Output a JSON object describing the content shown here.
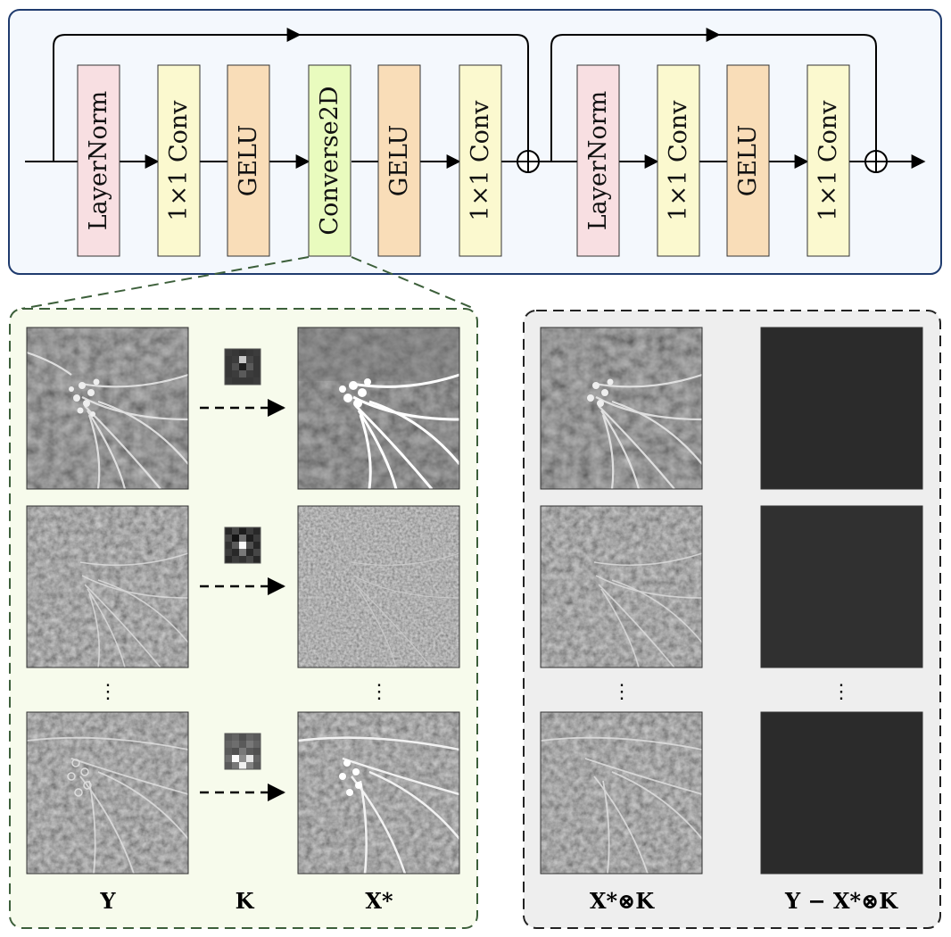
{
  "pipeline": {
    "blocks": [
      {
        "label": "LayerNorm",
        "color": "#f8dfe2"
      },
      {
        "label": "1×1 Conv",
        "color": "#fbf9cf"
      },
      {
        "label": "GELU",
        "color": "#f9ddb8"
      },
      {
        "label": "Converse2D",
        "color": "#e9fbbe"
      },
      {
        "label": "GELU",
        "color": "#f9ddb8"
      },
      {
        "label": "1×1 Conv",
        "color": "#fbf9cf"
      },
      {
        "label": "LayerNorm",
        "color": "#f8dfe2"
      },
      {
        "label": "1×1 Conv",
        "color": "#fbf9cf"
      },
      {
        "label": "GELU",
        "color": "#f9ddb8"
      },
      {
        "label": "1×1 Conv",
        "color": "#fbf9cf"
      }
    ],
    "panel_color": "#f4f8fd",
    "panel_border": "#1f3b6e"
  },
  "left_panel": {
    "col_labels": [
      "Y",
      "K",
      "X*"
    ],
    "ellipsis": "⋮",
    "bg": "#f7fbec",
    "border": "#3c5f3a"
  },
  "right_panel": {
    "col_labels": [
      "X*⊗K",
      "Y − X*⊗K"
    ],
    "ellipsis": "⋮",
    "bg": "#eeeeee",
    "border": "#222222"
  }
}
